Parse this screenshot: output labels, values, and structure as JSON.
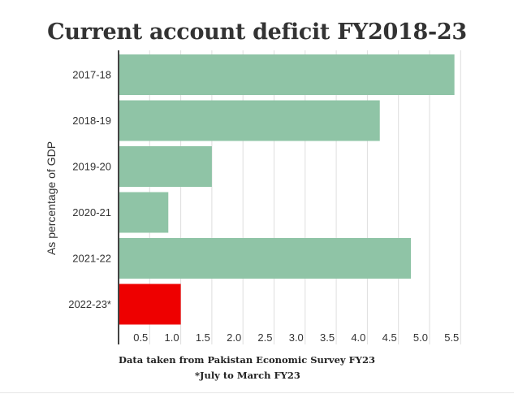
{
  "chart_data": {
    "type": "bar",
    "orientation": "horizontal",
    "title": "Current account deficit FY2018-23",
    "ylabel": "As percentage of GDP",
    "categories": [
      "2017-18",
      "2018-19",
      "2019-20",
      "2020-21",
      "2021-22",
      "2022-23*"
    ],
    "values": [
      5.4,
      4.2,
      1.5,
      0.8,
      4.7,
      1.0
    ],
    "x_ticks": [
      "0.5",
      "1.0",
      "1.5",
      "2.0",
      "2.5",
      "3.0",
      "3.5",
      "4.0",
      "4.5",
      "5.0",
      "5.5"
    ],
    "xlim": [
      0,
      5.6
    ],
    "grid": true,
    "colors": {
      "default": "#8fc4a6",
      "highlight": "#ee0000",
      "highlight_category": "2022-23*"
    }
  },
  "notes": {
    "source": "Data taken from Pakistan Economic Survey FY23",
    "footnote": "*July to March FY23"
  }
}
